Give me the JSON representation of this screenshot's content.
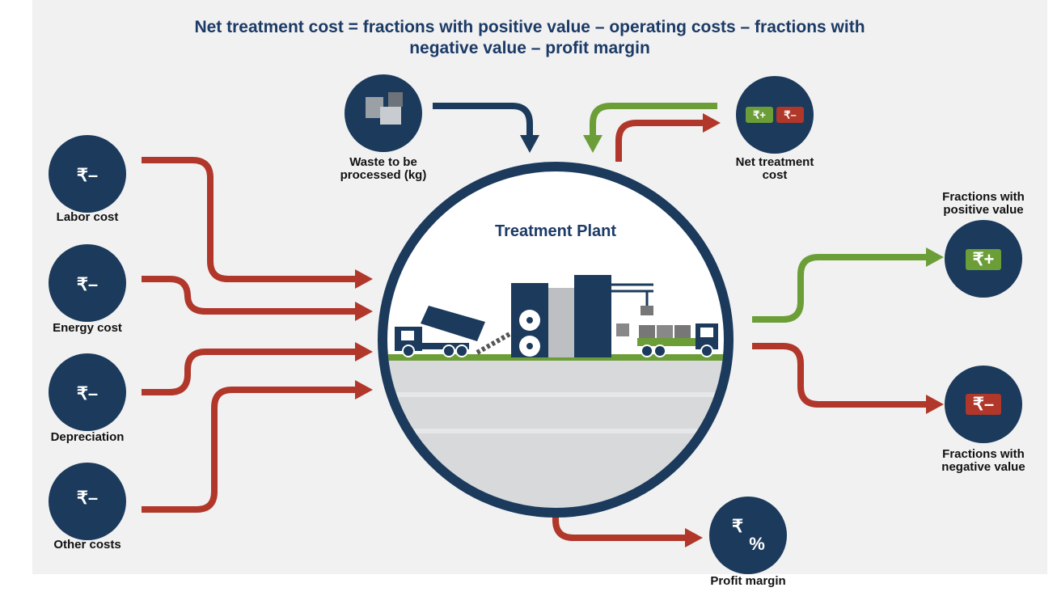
{
  "title_lines": [
    "Net treatment cost = fractions with positive value – operating costs – fractions with",
    "negative value – profit margin"
  ],
  "plant": {
    "label": "Treatment Plant"
  },
  "nodes": [
    {
      "label_lines": [
        "Labor cost"
      ],
      "icon": [
        "₹–"
      ]
    },
    {
      "label_lines": [
        "Energy cost"
      ],
      "icon": [
        "₹–"
      ]
    },
    {
      "label_lines": [
        "Depreciation"
      ],
      "icon": [
        "₹–"
      ]
    },
    {
      "label_lines": [
        "Other costs"
      ],
      "icon": [
        "₹–"
      ]
    },
    {
      "label_lines": [
        "Waste to be",
        "processed (kg)"
      ]
    },
    {
      "label_lines": [
        "Net treatment",
        "cost"
      ],
      "icon": [
        "₹+",
        "₹–"
      ]
    },
    {
      "label_lines": [
        "Fractions with",
        "positive value"
      ],
      "icon": [
        "₹+"
      ]
    },
    {
      "label_lines": [
        "Fractions with",
        "negative value"
      ],
      "icon": [
        "₹–"
      ]
    },
    {
      "label_lines": [
        "Profit margin"
      ],
      "icon": [
        "₹",
        "%"
      ]
    }
  ]
}
